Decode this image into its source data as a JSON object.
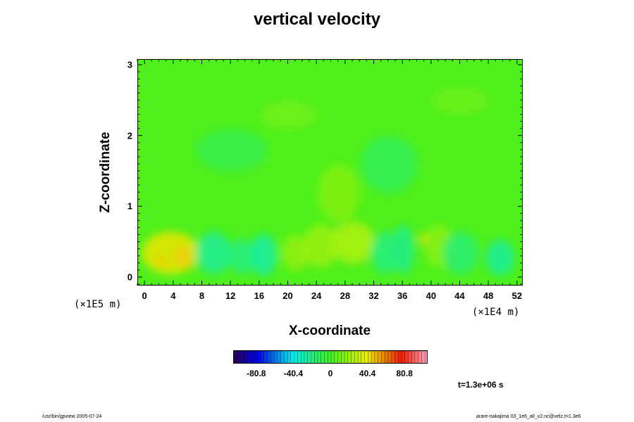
{
  "chart_data": {
    "type": "heatmap",
    "title": "vertical velocity",
    "xlabel": "X-coordinate",
    "ylabel": "Z-coordinate",
    "x_unit": "(×1E4 m)",
    "y_unit": "(×1E5 m)",
    "xlim": [
      -1,
      52.8
    ],
    "ylim": [
      -0.12,
      3.08
    ],
    "x_ticks": [
      "0",
      "4",
      "8",
      "12",
      "16",
      "20",
      "24",
      "28",
      "32",
      "36",
      "40",
      "44",
      "48",
      "52"
    ],
    "y_ticks": [
      "0",
      "1",
      "2",
      "3"
    ],
    "colorbar": {
      "range": [
        -106,
        106
      ],
      "tick_labels": [
        "-80.8",
        "-40.4",
        "0",
        "40.4",
        "80.8"
      ],
      "tick_values": [
        -80.8,
        -40.4,
        0,
        40.4,
        80.8
      ]
    },
    "background_value": 2,
    "features": [
      {
        "x": 2.2,
        "z": 0.24,
        "value": 72,
        "rx": 0.9,
        "rz": 0.07
      },
      {
        "x": 5.2,
        "z": 0.3,
        "value": 86,
        "rx": 1.3,
        "rz": 0.16
      },
      {
        "x": 3.5,
        "z": 0.35,
        "value": 40,
        "rx": 4.0,
        "rz": 0.3
      },
      {
        "x": 9.5,
        "z": 0.35,
        "value": -25,
        "rx": 2.5,
        "rz": 0.3
      },
      {
        "x": 13.5,
        "z": 0.3,
        "value": -20,
        "rx": 2.0,
        "rz": 0.25
      },
      {
        "x": 16.5,
        "z": 0.32,
        "value": -28,
        "rx": 1.8,
        "rz": 0.3
      },
      {
        "x": 21.0,
        "z": 0.35,
        "value": 18,
        "rx": 2.0,
        "rz": 0.25
      },
      {
        "x": 24.5,
        "z": 0.45,
        "value": 20,
        "rx": 2.5,
        "rz": 0.3
      },
      {
        "x": 29.0,
        "z": 0.5,
        "value": 24,
        "rx": 3.0,
        "rz": 0.3
      },
      {
        "x": 33.5,
        "z": 0.35,
        "value": -20,
        "rx": 2.0,
        "rz": 0.3
      },
      {
        "x": 36.0,
        "z": 0.4,
        "value": -22,
        "rx": 1.5,
        "rz": 0.35
      },
      {
        "x": 38.8,
        "z": 0.55,
        "value": 42,
        "rx": 0.6,
        "rz": 0.08
      },
      {
        "x": 41.0,
        "z": 0.45,
        "value": 16,
        "rx": 2.0,
        "rz": 0.3
      },
      {
        "x": 44.0,
        "z": 0.35,
        "value": -18,
        "rx": 2.5,
        "rz": 0.3
      },
      {
        "x": 49.5,
        "z": 0.28,
        "value": -26,
        "rx": 2.0,
        "rz": 0.25
      },
      {
        "x": 27.0,
        "z": 1.2,
        "value": 14,
        "rx": 3.0,
        "rz": 0.4
      },
      {
        "x": 34.0,
        "z": 1.6,
        "value": -12,
        "rx": 4.0,
        "rz": 0.4
      },
      {
        "x": 12.0,
        "z": 1.8,
        "value": -10,
        "rx": 5.0,
        "rz": 0.3
      },
      {
        "x": 20.0,
        "z": 2.3,
        "value": 10,
        "rx": 4.0,
        "rz": 0.2
      },
      {
        "x": 44.0,
        "z": 2.5,
        "value": 9,
        "rx": 4.0,
        "rz": 0.2
      }
    ]
  },
  "annotations": {
    "time": "t=1.3e+06 s",
    "footer_left": "/usr/bin/gpview 2005-07-24",
    "footer_right": "arare-nakajima 03_1e6_all_v2.nc@velz,t=1.3e6"
  }
}
